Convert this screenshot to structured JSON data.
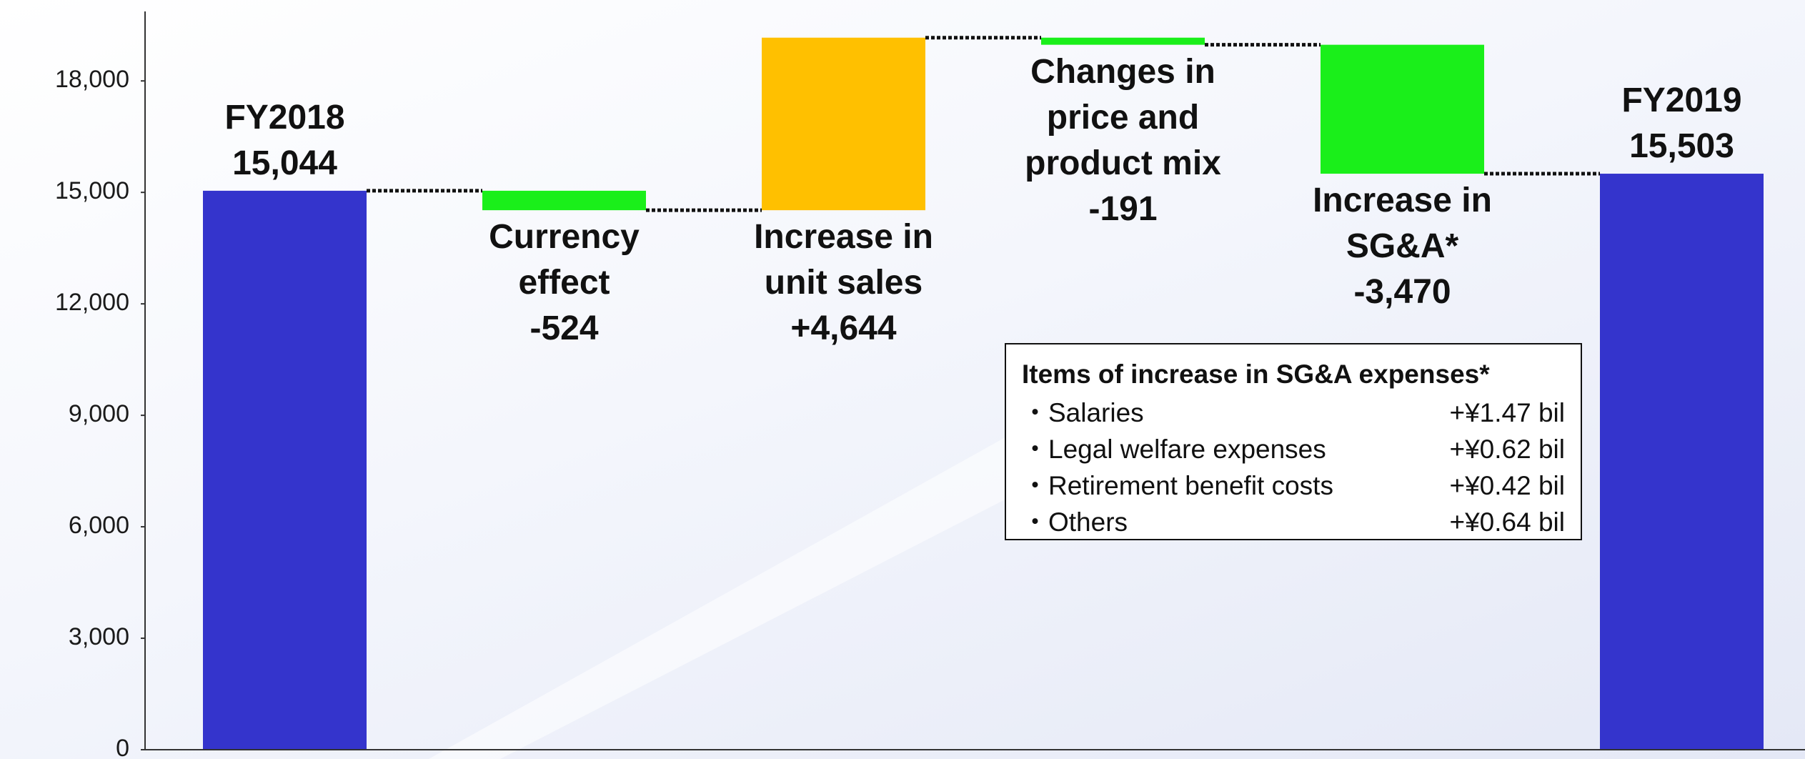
{
  "chart_data": {
    "type": "waterfall",
    "categories": [
      "FY2018",
      "Currency effect",
      "Increase in unit sales",
      "Changes in price and product mix",
      "Increase in SG&A*",
      "FY2019"
    ],
    "values": [
      15044,
      -524,
      4644,
      -191,
      -3470,
      15503
    ],
    "value_labels": [
      "15,044",
      "-524",
      "+4,644",
      "-191",
      "-3,470",
      "15,503"
    ],
    "totals": [
      true,
      false,
      false,
      false,
      false,
      true
    ],
    "colors": {
      "total": "#3434cc",
      "increase": "#ffc000",
      "decrease": "#1aef1a"
    },
    "ylim": [
      0,
      19870
    ],
    "yticks": [
      0,
      {
        "value": 3000,
        "label": "3,000"
      },
      {
        "value": 6000,
        "label": "6,000"
      },
      {
        "value": 9000,
        "label": "9,000"
      },
      {
        "value": 12000,
        "label": "12,000"
      },
      {
        "value": 15000,
        "label": "15,000"
      },
      {
        "value": 18000,
        "label": "18,000"
      }
    ],
    "annotation_box": {
      "title": "Items of increase in SG&A expenses*",
      "items": [
        {
          "label": "・Salaries",
          "value": "+¥1.47 bil"
        },
        {
          "label": "・Legal welfare expenses",
          "value": "+¥0.62 bil"
        },
        {
          "label": "・Retirement benefit costs",
          "value": "+¥0.42 bil"
        },
        {
          "label": "・Others",
          "value": "+¥0.64 bil"
        }
      ]
    }
  }
}
